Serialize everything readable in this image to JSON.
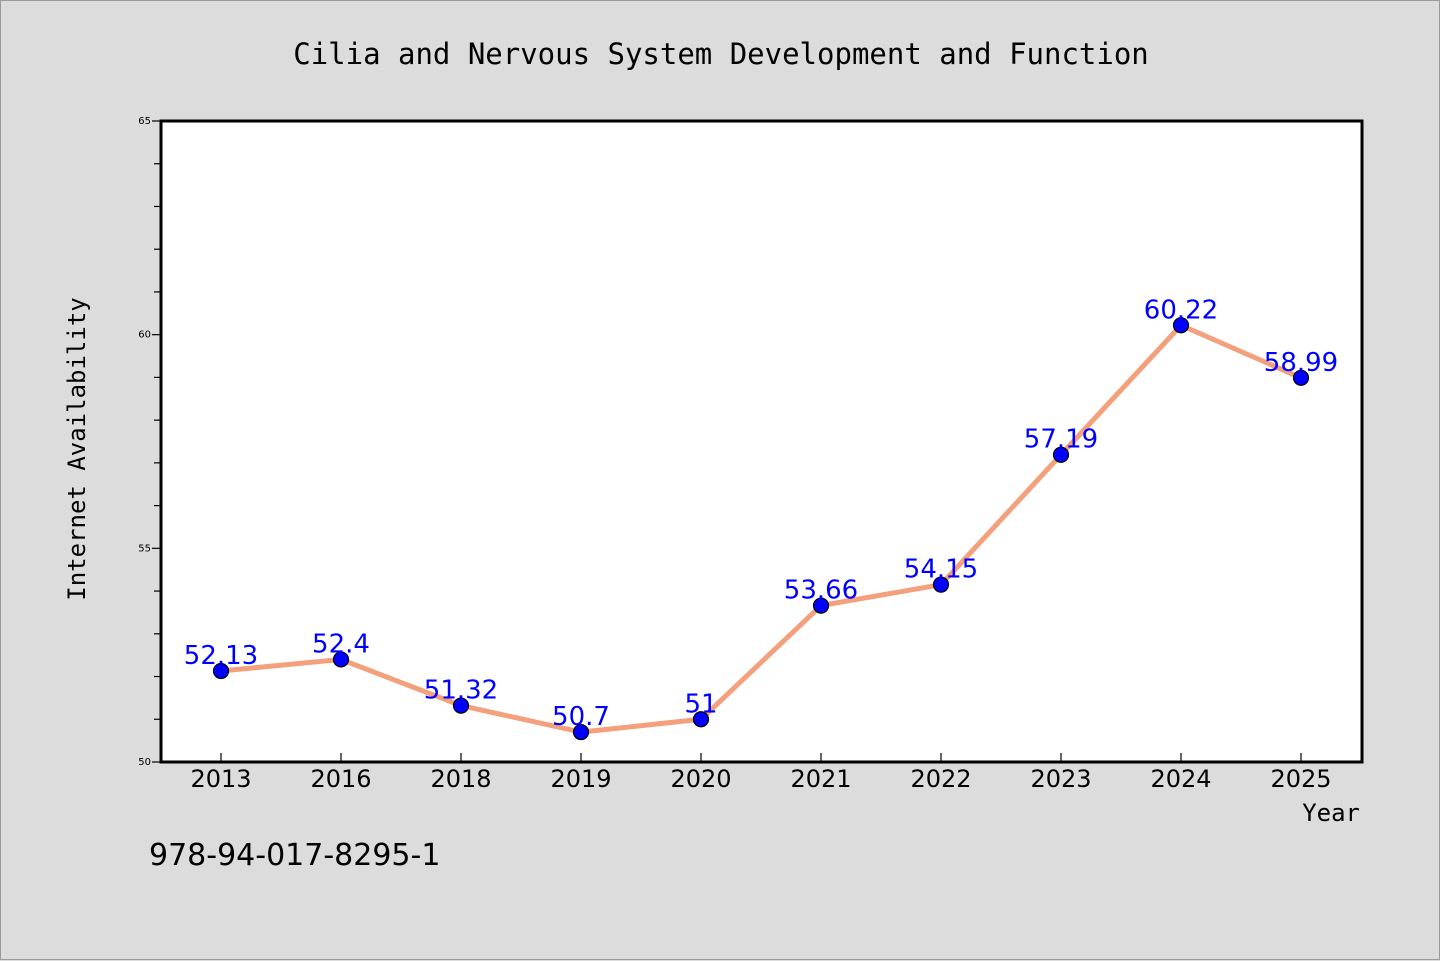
{
  "chart_data": {
    "type": "line",
    "title": "Cilia and Nervous System Development and Function",
    "xlabel": "Year",
    "ylabel": "Internet Availability",
    "categories": [
      "2013",
      "2016",
      "2018",
      "2019",
      "2020",
      "2021",
      "2022",
      "2023",
      "2024",
      "2025"
    ],
    "series": [
      {
        "values": [
          52.13,
          52.4,
          51.32,
          50.7,
          51,
          53.66,
          54.15,
          57.19,
          60.22,
          58.99
        ],
        "labels": [
          "52.13",
          "52.4",
          "51.32",
          "50.7",
          "51",
          "53.66",
          "54.15",
          "57.19",
          "60.22",
          "58.99"
        ]
      }
    ],
    "ylim": [
      50,
      65
    ],
    "yticks": [
      "50",
      "55",
      "60",
      "65"
    ],
    "grid": false,
    "legend": "none",
    "colors": {
      "line": "#f4a07c",
      "marker": "#0000ff",
      "label": "#0000ff",
      "background": "#dcdcdc",
      "plot_background": "#ffffff"
    }
  },
  "footer": {
    "isbn": "978-94-017-8295-1"
  }
}
